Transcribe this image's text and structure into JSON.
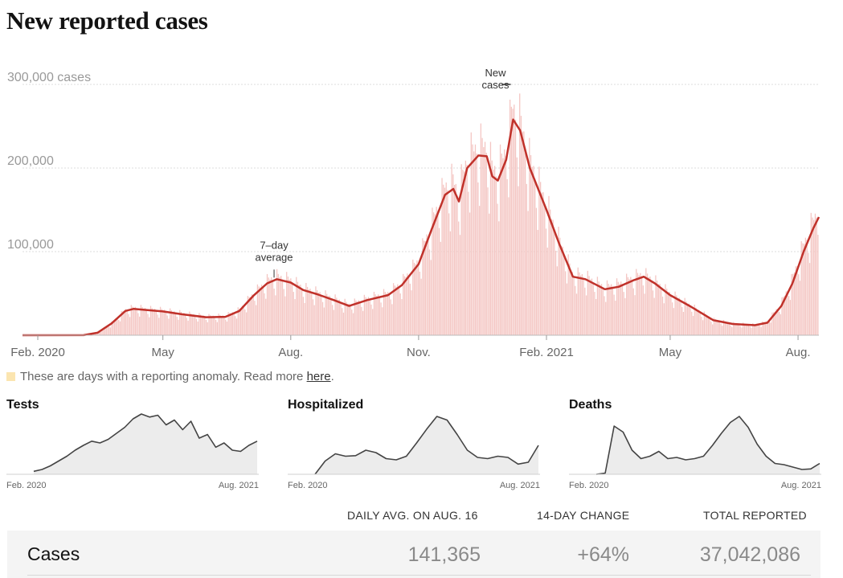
{
  "title": "New reported cases",
  "note": {
    "text": "These are days with a reporting anomaly. Read more ",
    "link": "here",
    "end": "."
  },
  "colors": {
    "bars": "#f4c6c3",
    "line": "#c0312a",
    "anomaly": "#fbe5b0",
    "mini_fill": "#ececec",
    "mini_line": "#444444"
  },
  "chart_data": [
    {
      "type": "bar",
      "title": "New reported cases",
      "series": [
        {
          "name": "New cases",
          "kind": "bar"
        },
        {
          "name": "7-day average",
          "kind": "line"
        }
      ],
      "x_range": [
        "2020-01-21",
        "2021-08-16"
      ],
      "ylim": [
        0,
        300000
      ],
      "yticks": [
        {
          "value": 100000,
          "label": "100,000"
        },
        {
          "value": 200000,
          "label": "200,000"
        },
        {
          "value": 300000,
          "label": "300,000 cases"
        }
      ],
      "xticks": [
        {
          "date": "2020-02-01",
          "label": "Feb. 2020"
        },
        {
          "date": "2020-05-01",
          "label": "May"
        },
        {
          "date": "2020-08-01",
          "label": "Aug."
        },
        {
          "date": "2020-11-01",
          "label": "Nov."
        },
        {
          "date": "2021-02-01",
          "label": "Feb. 2021"
        },
        {
          "date": "2021-05-01",
          "label": "May"
        },
        {
          "date": "2021-08-01",
          "label": "Aug."
        }
      ],
      "annotations": [
        {
          "text": [
            "7–day",
            "average"
          ],
          "date": "2020-07-20",
          "value": 67000
        },
        {
          "text": [
            "New",
            "cases"
          ],
          "date": "2021-01-08",
          "value": 300000
        }
      ],
      "seven_day_average": [
        {
          "date": "2020-01-21",
          "value": 0
        },
        {
          "date": "2020-03-05",
          "value": 100
        },
        {
          "date": "2020-03-15",
          "value": 3000
        },
        {
          "date": "2020-03-25",
          "value": 14000
        },
        {
          "date": "2020-04-04",
          "value": 29000
        },
        {
          "date": "2020-04-10",
          "value": 31500
        },
        {
          "date": "2020-04-20",
          "value": 30000
        },
        {
          "date": "2020-05-01",
          "value": 28500
        },
        {
          "date": "2020-05-15",
          "value": 25000
        },
        {
          "date": "2020-06-01",
          "value": 21500
        },
        {
          "date": "2020-06-15",
          "value": 22000
        },
        {
          "date": "2020-06-25",
          "value": 29000
        },
        {
          "date": "2020-07-05",
          "value": 47000
        },
        {
          "date": "2020-07-15",
          "value": 62000
        },
        {
          "date": "2020-07-22",
          "value": 67000
        },
        {
          "date": "2020-08-01",
          "value": 63000
        },
        {
          "date": "2020-08-10",
          "value": 54000
        },
        {
          "date": "2020-08-20",
          "value": 49000
        },
        {
          "date": "2020-09-01",
          "value": 42000
        },
        {
          "date": "2020-09-12",
          "value": 35000
        },
        {
          "date": "2020-09-25",
          "value": 42000
        },
        {
          "date": "2020-10-10",
          "value": 48000
        },
        {
          "date": "2020-10-20",
          "value": 60000
        },
        {
          "date": "2020-11-01",
          "value": 85000
        },
        {
          "date": "2020-11-10",
          "value": 125000
        },
        {
          "date": "2020-11-20",
          "value": 168000
        },
        {
          "date": "2020-11-26",
          "value": 175000
        },
        {
          "date": "2020-11-30",
          "value": 160000
        },
        {
          "date": "2020-12-06",
          "value": 200000
        },
        {
          "date": "2020-12-14",
          "value": 215000
        },
        {
          "date": "2020-12-20",
          "value": 214000
        },
        {
          "date": "2020-12-24",
          "value": 190000
        },
        {
          "date": "2020-12-28",
          "value": 185000
        },
        {
          "date": "2021-01-03",
          "value": 210000
        },
        {
          "date": "2021-01-08",
          "value": 258000
        },
        {
          "date": "2021-01-13",
          "value": 245000
        },
        {
          "date": "2021-01-20",
          "value": 200000
        },
        {
          "date": "2021-02-01",
          "value": 150000
        },
        {
          "date": "2021-02-10",
          "value": 110000
        },
        {
          "date": "2021-02-20",
          "value": 70000
        },
        {
          "date": "2021-03-01",
          "value": 67000
        },
        {
          "date": "2021-03-15",
          "value": 55000
        },
        {
          "date": "2021-03-25",
          "value": 58000
        },
        {
          "date": "2021-04-05",
          "value": 66000
        },
        {
          "date": "2021-04-12",
          "value": 70000
        },
        {
          "date": "2021-04-20",
          "value": 62000
        },
        {
          "date": "2021-05-01",
          "value": 48000
        },
        {
          "date": "2021-05-15",
          "value": 35000
        },
        {
          "date": "2021-06-01",
          "value": 18000
        },
        {
          "date": "2021-06-15",
          "value": 13500
        },
        {
          "date": "2021-07-01",
          "value": 12000
        },
        {
          "date": "2021-07-10",
          "value": 15000
        },
        {
          "date": "2021-07-20",
          "value": 35000
        },
        {
          "date": "2021-07-28",
          "value": 62000
        },
        {
          "date": "2021-08-05",
          "value": 100000
        },
        {
          "date": "2021-08-12",
          "value": 128000
        },
        {
          "date": "2021-08-16",
          "value": 141365
        }
      ]
    },
    {
      "type": "area",
      "title": "Tests",
      "x_labels": [
        "Feb. 2020",
        "Aug. 2021"
      ],
      "values": [
        5,
        8,
        14,
        22,
        30,
        40,
        48,
        55,
        52,
        58,
        68,
        78,
        92,
        100,
        95,
        98,
        82,
        90,
        74,
        88,
        60,
        66,
        45,
        52,
        40,
        38,
        48,
        55
      ]
    },
    {
      "type": "area",
      "title": "Hospitalized",
      "x_labels": [
        "Feb. 2020",
        "Aug. 2021"
      ],
      "values": [
        0,
        22,
        34,
        30,
        31,
        40,
        36,
        26,
        24,
        30,
        52,
        75,
        96,
        90,
        66,
        40,
        28,
        26,
        30,
        28,
        17,
        20,
        48
      ]
    },
    {
      "type": "area",
      "title": "Deaths",
      "x_labels": [
        "Feb. 2020",
        "Aug. 2021"
      ],
      "values": [
        0,
        2,
        80,
        70,
        40,
        26,
        30,
        38,
        26,
        28,
        24,
        26,
        30,
        48,
        68,
        86,
        96,
        78,
        50,
        30,
        18,
        16,
        12,
        8,
        9,
        18
      ]
    }
  ],
  "table": {
    "headers": [
      "DAILY AVG. ON AUG. 16",
      "14-DAY CHANGE",
      "TOTAL REPORTED"
    ],
    "rows": [
      {
        "label": "Cases",
        "daily_avg": "141,365",
        "change": "+64%",
        "total": "37,042,086"
      }
    ]
  }
}
